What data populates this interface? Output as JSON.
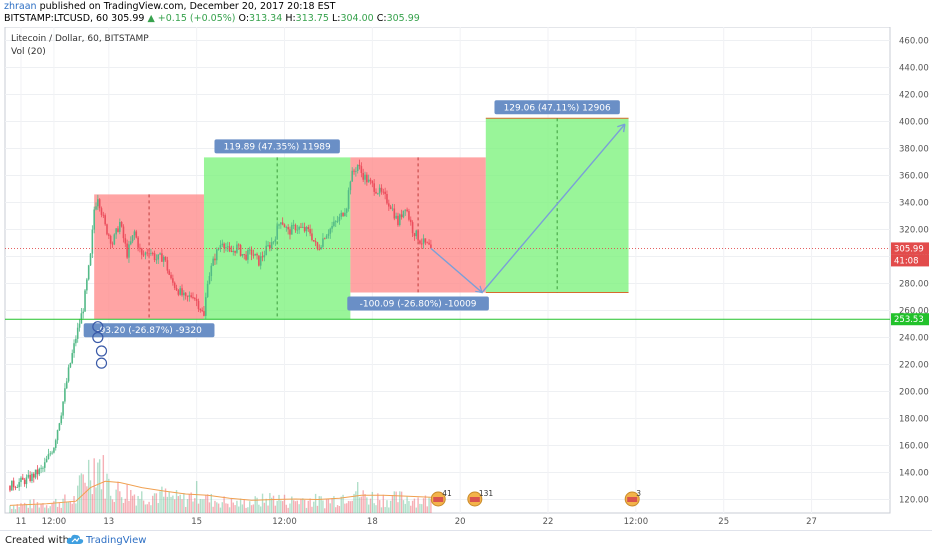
{
  "header": {
    "user": "zhraan",
    "published_text": "published on TradingView.com, December 20, 2017 20:18 EST",
    "symbol_line": "BITSTAMP:LTCUSD, 60",
    "last_price": "305.99",
    "change": "+0.15 (+0.05%)",
    "ohlc": {
      "o_label": "O:",
      "o": "313.34",
      "h_label": "H:",
      "h": "313.75",
      "l_label": "L:",
      "l": "304.00",
      "c_label": "C:",
      "c": "305.99"
    }
  },
  "legend": {
    "title": "Litecoin / Dollar, 60, BITSTAMP",
    "volume_label": "Vol (20)"
  },
  "footer": {
    "created_with": "Created with",
    "brand": "TradingView"
  },
  "colors": {
    "up": "#53b987",
    "down": "#eb4d5c",
    "profit_zone": "#7cf27c",
    "loss_zone": "#ff8a8a",
    "label_bg": "#6a8fc6",
    "support_line": "#22c22b",
    "price_line": "#e24b4b",
    "arrow": "#7a9fd8"
  },
  "chart_data": {
    "type": "candlestick",
    "price_axis": {
      "min": 110,
      "max": 470,
      "ticks": [
        "120.00",
        "140.00",
        "160.00",
        "180.00",
        "200.00",
        "220.00",
        "240.00",
        "260.00",
        "280.00",
        "300.00",
        "320.00",
        "340.00",
        "360.00",
        "380.00",
        "400.00",
        "420.00",
        "440.00",
        "460.00"
      ]
    },
    "time_axis": {
      "labels": [
        {
          "t": 3,
          "text": "11"
        },
        {
          "t": 12,
          "text": "12:00"
        },
        {
          "t": 27,
          "text": "13"
        },
        {
          "t": 51,
          "text": "15"
        },
        {
          "t": 75,
          "text": "12:00"
        },
        {
          "t": 99,
          "text": "18"
        },
        {
          "t": 123,
          "text": "20"
        },
        {
          "t": 147,
          "text": "22"
        },
        {
          "t": 171,
          "text": "12:00"
        },
        {
          "t": 195,
          "text": "25"
        },
        {
          "t": 219,
          "text": "27"
        }
      ]
    },
    "price_labels": {
      "last": "305.99",
      "countdown": "41:08",
      "support": "253.53"
    },
    "support_level": 253.53,
    "last_price": 305.99,
    "anchors": [
      [
        0,
        130
      ],
      [
        5,
        135
      ],
      [
        9,
        143
      ],
      [
        12,
        160
      ],
      [
        14,
        185
      ],
      [
        16,
        215
      ],
      [
        18,
        240
      ],
      [
        20,
        262
      ],
      [
        22,
        300
      ],
      [
        23,
        335
      ],
      [
        24,
        345
      ],
      [
        26,
        322
      ],
      [
        28,
        310
      ],
      [
        30,
        325
      ],
      [
        32,
        302
      ],
      [
        34,
        318
      ],
      [
        36,
        300
      ],
      [
        38,
        305
      ],
      [
        40,
        298
      ],
      [
        42,
        300
      ],
      [
        44,
        282
      ],
      [
        46,
        275
      ],
      [
        48,
        268
      ],
      [
        50,
        272
      ],
      [
        52,
        262
      ],
      [
        53,
        255
      ],
      [
        54,
        283
      ],
      [
        56,
        300
      ],
      [
        58,
        312
      ],
      [
        60,
        302
      ],
      [
        62,
        307
      ],
      [
        64,
        300
      ],
      [
        66,
        303
      ],
      [
        68,
        296
      ],
      [
        70,
        305
      ],
      [
        72,
        312
      ],
      [
        74,
        328
      ],
      [
        76,
        318
      ],
      [
        78,
        322
      ],
      [
        80,
        320
      ],
      [
        82,
        318
      ],
      [
        84,
        305
      ],
      [
        86,
        316
      ],
      [
        88,
        322
      ],
      [
        90,
        328
      ],
      [
        92,
        338
      ],
      [
        93,
        358
      ],
      [
        95,
        368
      ],
      [
        96,
        362
      ],
      [
        98,
        355
      ],
      [
        100,
        350
      ],
      [
        102,
        345
      ],
      [
        104,
        338
      ],
      [
        106,
        325
      ],
      [
        108,
        338
      ],
      [
        110,
        320
      ],
      [
        112,
        312
      ],
      [
        114,
        308
      ],
      [
        115,
        305.99
      ]
    ],
    "volume_axis_max": 260,
    "volume_levels": [
      [
        0,
        20
      ],
      [
        10,
        25
      ],
      [
        18,
        35
      ],
      [
        20,
        95
      ],
      [
        22,
        120
      ],
      [
        24,
        140
      ],
      [
        26,
        90
      ],
      [
        28,
        60
      ],
      [
        32,
        55
      ],
      [
        36,
        45
      ],
      [
        40,
        50
      ],
      [
        44,
        40
      ],
      [
        48,
        35
      ],
      [
        52,
        60
      ],
      [
        54,
        35
      ],
      [
        58,
        30
      ],
      [
        62,
        25
      ],
      [
        68,
        30
      ],
      [
        72,
        40
      ],
      [
        76,
        30
      ],
      [
        80,
        35
      ],
      [
        86,
        30
      ],
      [
        90,
        40
      ],
      [
        94,
        65
      ],
      [
        96,
        45
      ],
      [
        100,
        40
      ],
      [
        104,
        35
      ],
      [
        108,
        40
      ],
      [
        112,
        35
      ],
      [
        115,
        30
      ]
    ],
    "volume_ma": [
      [
        0,
        18
      ],
      [
        10,
        22
      ],
      [
        18,
        28
      ],
      [
        22,
        60
      ],
      [
        26,
        75
      ],
      [
        30,
        72
      ],
      [
        36,
        60
      ],
      [
        42,
        52
      ],
      [
        48,
        45
      ],
      [
        54,
        42
      ],
      [
        60,
        35
      ],
      [
        66,
        30
      ],
      [
        72,
        32
      ],
      [
        78,
        33
      ],
      [
        84,
        32
      ],
      [
        90,
        35
      ],
      [
        96,
        42
      ],
      [
        102,
        42
      ],
      [
        108,
        40
      ],
      [
        115,
        37
      ]
    ],
    "zones": [
      {
        "kind": "loss",
        "t1": 23,
        "t2": 53,
        "y_top": 346,
        "y_bot": 253.53,
        "label": "-93.20 (-26.87%) -9320",
        "label_pos": "below"
      },
      {
        "kind": "profit",
        "t1": 53,
        "t2": 93,
        "y_top": 373.42,
        "y_bot": 253.53,
        "label": "119.89 (47.35%) 11989",
        "label_pos": "above"
      },
      {
        "kind": "loss",
        "t1": 93,
        "t2": 130,
        "y_top": 373.42,
        "y_bot": 273.33,
        "label": "-100.09 (-26.80%) -10009",
        "label_pos": "below"
      },
      {
        "kind": "profit",
        "t1": 130,
        "t2": 169,
        "y_top": 402.39,
        "y_bot": 273.33,
        "label": "129.06 (47.11%) 12906",
        "label_pos": "above"
      }
    ],
    "projection": [
      [
        115,
        305.99
      ],
      [
        129,
        273.33
      ],
      [
        168,
        398
      ]
    ],
    "events": [
      {
        "t": 117,
        "text": "41"
      },
      {
        "t": 127,
        "text": "131"
      },
      {
        "t": 170,
        "text": "3"
      }
    ]
  }
}
